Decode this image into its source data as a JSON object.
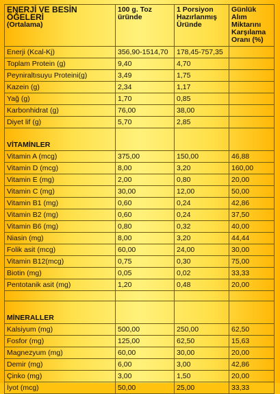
{
  "header": {
    "title_line1": "ENERJİ VE BESİN ÖĞELERİ",
    "title_line2": "(Ortalama)",
    "col2": "100 g. Toz üründe",
    "col3": "1 Porsiyon Hazırlanmış Üründe",
    "col4": "Günlük Alım Miktarını Karşılama Oranı (%)"
  },
  "main_rows": [
    {
      "name": "Enerji (Kcal-Kj)",
      "per100": "356,90-1514,70",
      "portion": "178,45-757,35",
      "pct": ""
    },
    {
      "name": "Toplam Protein (g)",
      "per100": "9,40",
      "portion": "4,70",
      "pct": ""
    },
    {
      "name": "Peyniraltısuyu Proteini(g)",
      "per100": "3,49",
      "portion": "1,75",
      "pct": ""
    },
    {
      "name": "Kazein (g)",
      "per100": "2,34",
      "portion": "1,17",
      "pct": ""
    },
    {
      "name": "Yağ (g)",
      "per100": "1,70",
      "portion": "0,85",
      "pct": ""
    },
    {
      "name": "Karbonhidrat (g)",
      "per100": "76,00",
      "portion": "38,00",
      "pct": ""
    },
    {
      "name": "Diyet lif (g)",
      "per100": "5,70",
      "portion": "2,85",
      "pct": ""
    }
  ],
  "vitamins": {
    "title": "VİTAMİNLER",
    "rows": [
      {
        "name": "Vitamin A (mcg)",
        "per100": "375,00",
        "portion": "150,00",
        "pct": "46,88"
      },
      {
        "name": "Vitamin D (mcg)",
        "per100": "8,00",
        "portion": "3,20",
        "pct": "160,00"
      },
      {
        "name": "Vitamin E (mg)",
        "per100": "2,00",
        "portion": "0,80",
        "pct": "20,00"
      },
      {
        "name": "Vitamin C (mg)",
        "per100": "30,00",
        "portion": "12,00",
        "pct": "50,00"
      },
      {
        "name": "Vitamin B1 (mg)",
        "per100": "0,60",
        "portion": "0,24",
        "pct": "42,86"
      },
      {
        "name": "Vitamin B2 (mg)",
        "per100": "0,60",
        "portion": "0,24",
        "pct": "37,50"
      },
      {
        "name": "Vitamin B6 (mg)",
        "per100": " 0,80",
        "portion": "0,32",
        "pct": "40,00"
      },
      {
        "name": "Niasin (mg)",
        "per100": "8,00",
        "portion": "3,20",
        "pct": "44,44"
      },
      {
        "name": "Folik asit (mcg)",
        "per100": "60,00",
        "portion": "24,00",
        "pct": "30,00"
      },
      {
        "name": "Vitamin B12(mcg)",
        "per100": "0,75",
        "portion": "0,30",
        "pct": "75,00"
      },
      {
        "name": "Biotin (mg)",
        "per100": "0,05",
        "portion": "0,02",
        "pct": "33,33"
      },
      {
        "name": "Pentotanik asit (mg)",
        "per100": "1,20",
        "portion": "0,48",
        "pct": "20,00"
      }
    ]
  },
  "minerals": {
    "title": "MİNERALLER",
    "rows": [
      {
        "name": "Kalsiyum (mg)",
        "per100": "500,00",
        "portion": "250,00",
        "pct": "62,50"
      },
      {
        "name": "Fosfor (mg)",
        "per100": "125,00",
        "portion": "62,50",
        "pct": "15,63"
      },
      {
        "name": "Magnezyum (mg)",
        "per100": "60,00",
        "portion": "30,00",
        "pct": "20,00"
      },
      {
        "name": "Demir (mg)",
        "per100": "6,00",
        "portion": "3,00",
        "pct": "42,86"
      },
      {
        "name": "Çinko (mg)",
        "per100": "3,00",
        "portion": "1,50",
        "pct": "20,00"
      },
      {
        "name": "İyot (mcg)",
        "per100": "50,00",
        "portion": "25,00",
        "pct": "33,33"
      }
    ]
  },
  "colors": {
    "background_edge": "#ffb400",
    "background_center": "#fff17a",
    "border": "#6d5a14"
  }
}
